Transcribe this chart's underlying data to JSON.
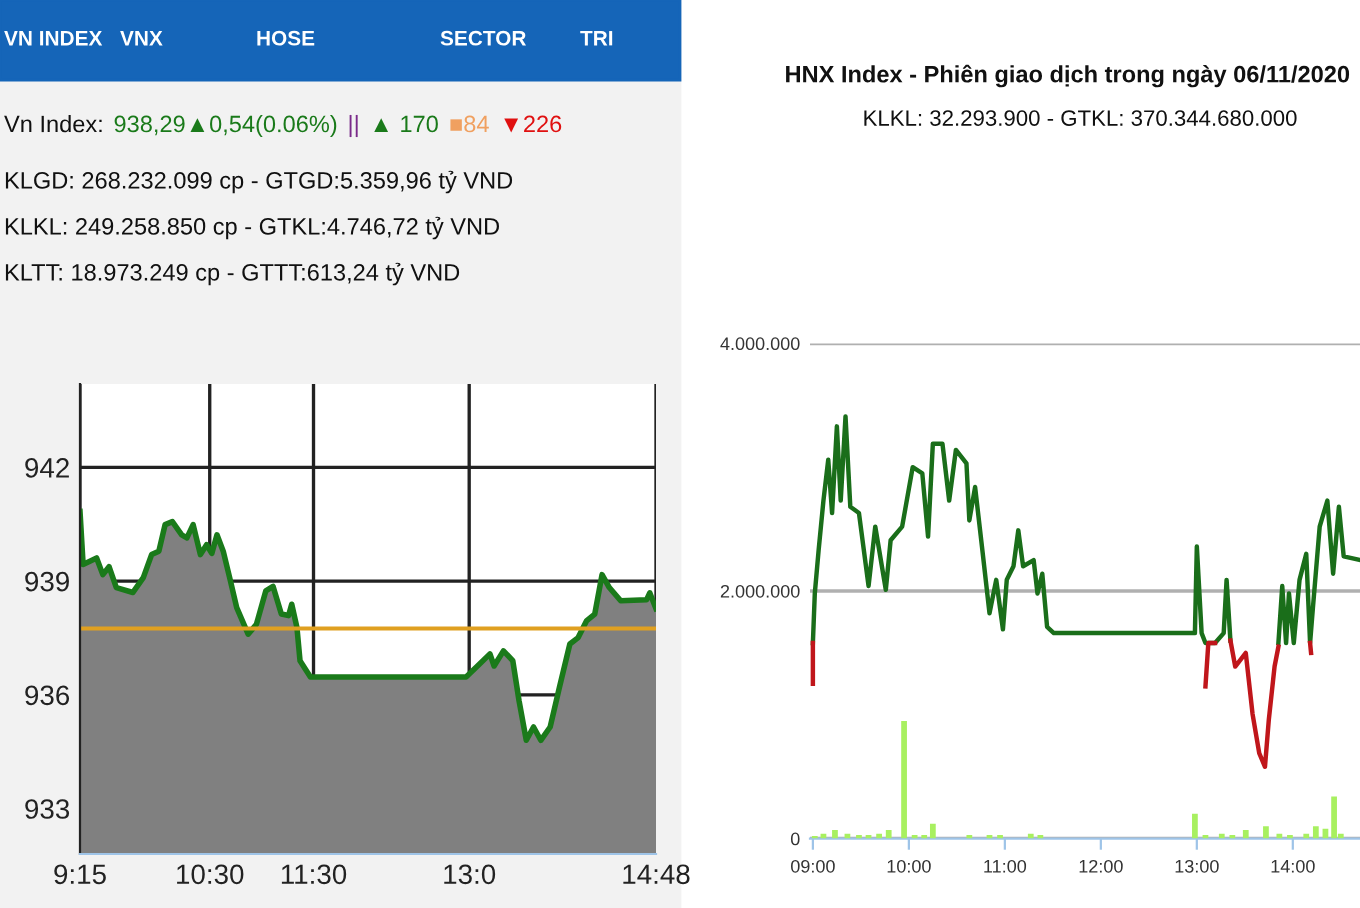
{
  "chart_data": [
    {
      "type": "area",
      "annotations": [
        "VN INDEX",
        "VNX",
        "HOSE",
        "SECTOR",
        "TRI",
        "Vn Index:",
        "938,29▲0,54(0.06%)",
        "||",
        "▲ 170",
        "■84",
        "▼226",
        "KLGD: 268.232.099 cp - GTGD:5.359,96 tỷ VND",
        "KLKL: 249.258.850 cp - GTKL:4.746,72 tỷ VND",
        "KLTT: 18.973.249 cp - GTTT:613,24 tỷ VND"
      ],
      "series": [
        {
          "color": "#1a7a1a",
          "x": [
            9.25,
            9.28,
            9.41,
            9.47,
            9.53,
            9.6,
            9.76,
            9.86,
            9.94,
            10.01,
            10.07,
            10.14,
            10.23,
            10.28,
            10.34,
            10.41,
            10.47,
            10.52,
            10.57,
            10.63,
            10.7,
            10.76,
            10.87,
            10.95,
            11.04,
            11.11,
            11.19,
            11.26,
            11.29,
            11.34,
            11.37,
            11.47,
            12.97,
            13.1,
            13.2,
            13.24,
            13.33,
            13.42,
            13.48,
            13.55,
            13.62,
            13.69,
            13.78,
            13.87,
            13.97,
            14.05,
            14.13,
            14.21,
            14.28,
            14.35,
            14.46,
            14.71,
            14.74,
            14.8
          ],
          "values": [
            940.84,
            939.44,
            939.61,
            939.17,
            939.38,
            938.83,
            938.7,
            939.09,
            939.7,
            939.79,
            940.49,
            940.57,
            940.22,
            940.14,
            940.49,
            939.7,
            939.96,
            939.73,
            940.22,
            939.79,
            939.0,
            938.3,
            937.6,
            937.86,
            938.74,
            938.86,
            938.13,
            938.09,
            938.39,
            937.78,
            936.9,
            936.47,
            936.47,
            936.81,
            937.08,
            936.76,
            937.16,
            936.9,
            935.85,
            934.8,
            935.15,
            934.8,
            935.15,
            936.2,
            937.34,
            937.51,
            937.95,
            938.13,
            939.17,
            938.83,
            938.48,
            938.51,
            938.69,
            938.27
          ]
        }
      ],
      "xlim": [
        9.25,
        14.8
      ],
      "xticks": [
        {
          "value": 9.25,
          "label": "9:15"
        },
        {
          "value": 10.5,
          "label": "10:30"
        },
        {
          "value": 11.5,
          "label": "11:30"
        },
        {
          "value": 13.0,
          "label": "13:0"
        },
        {
          "value": 14.8,
          "label": "14:48"
        }
      ],
      "ylim": [
        931.8,
        944.2
      ],
      "yticks": [
        933,
        936,
        939,
        942
      ],
      "grid": true,
      "ref_lines": [
        {
          "axis": "y",
          "value": 937.75,
          "color": "#e0a020"
        }
      ]
    },
    {
      "type": "line",
      "title": "HNX Index - Phiên giao dịch trong ngày 06/11/2020",
      "subtitle": "KLKL: 32.293.900 - GTKL: 370.344.680.000",
      "series": [
        {
          "type": "line",
          "color": "#1a6e1a",
          "x": [
            9.0,
            9.02,
            9.06,
            9.11,
            9.16,
            9.2,
            9.25,
            9.29,
            9.34,
            9.39,
            9.48,
            9.58,
            9.65,
            9.76,
            9.81,
            9.93,
            10.04,
            10.14,
            10.2,
            10.25,
            10.35,
            10.42,
            10.49,
            10.6,
            10.63,
            10.69,
            10.77,
            10.84,
            10.91,
            10.98,
            11.02,
            11.09,
            11.14,
            11.19,
            11.3,
            11.34,
            11.39,
            11.44,
            11.51,
            12.98,
            13.0,
            13.05,
            13.09,
            13.19,
            13.28,
            13.31,
            13.35,
            13.6,
            13.85,
            13.89,
            13.93,
            13.96,
            14.01,
            14.07,
            14.14,
            14.18,
            14.21,
            14.28,
            14.36,
            14.42,
            14.48,
            14.53,
            14.7
          ],
          "values": [
            1580000,
            1980000,
            2330000,
            2730000,
            3060000,
            2630000,
            3330000,
            2730000,
            3410000,
            2680000,
            2630000,
            2040000,
            2520000,
            2010000,
            2410000,
            2520000,
            3000000,
            2950000,
            2440000,
            3190000,
            3190000,
            2730000,
            3140000,
            3030000,
            2570000,
            2840000,
            2300000,
            1820000,
            2090000,
            1690000,
            2090000,
            2200000,
            2490000,
            2200000,
            2250000,
            1980000,
            2140000,
            1710000,
            1660000,
            1660000,
            2360000,
            1660000,
            1580000,
            1580000,
            1660000,
            2090000,
            1600000,
            null,
            1580000,
            2040000,
            1580000,
            1980000,
            1580000,
            2090000,
            2300000,
            1580000,
            1870000,
            2520000,
            2730000,
            2140000,
            2680000,
            2280000,
            2250000
          ]
        },
        {
          "type": "line",
          "color": "#c0161b",
          "x": [
            9.0,
            9.0,
            9.05,
            13.09,
            13.12,
            13.19,
            13.27,
            13.35,
            13.4,
            13.51,
            13.58,
            13.65,
            13.71,
            13.75,
            13.81,
            13.85,
            14.0,
            14.18,
            14.19
          ],
          "values": [
            1250000,
            1580000,
            null,
            1230000,
            1580000,
            1580000,
            null,
            1600000,
            1390000,
            1500000,
            1010000,
            690000,
            580000,
            960000,
            1390000,
            1550000,
            null,
            1580000,
            1500000
          ]
        },
        {
          "type": "bar",
          "color": "#a8f060",
          "x": [
            9.02,
            9.11,
            9.23,
            9.36,
            9.48,
            9.58,
            9.69,
            9.79,
            9.95,
            10.06,
            10.16,
            10.25,
            10.63,
            10.84,
            10.95,
            11.27,
            11.37,
            12.98,
            13.09,
            13.26,
            13.37,
            13.51,
            13.72,
            13.86,
            13.97,
            14.14,
            14.24,
            14.34,
            14.43,
            14.5
          ],
          "values": [
            20000,
            40000,
            70000,
            40000,
            30000,
            30000,
            40000,
            70000,
            950000,
            30000,
            30000,
            120000,
            30000,
            30000,
            30000,
            40000,
            30000,
            200000,
            30000,
            40000,
            30000,
            70000,
            100000,
            40000,
            30000,
            40000,
            100000,
            80000,
            340000,
            40000
          ]
        }
      ],
      "xlim": [
        8.97,
        14.7
      ],
      "xticks": [
        {
          "value": 9,
          "label": "09:00"
        },
        {
          "value": 10,
          "label": "10:00"
        },
        {
          "value": 11,
          "label": "11:00"
        },
        {
          "value": 12,
          "label": "12:00"
        },
        {
          "value": 13,
          "label": "13:00"
        },
        {
          "value": 14,
          "label": "14:00"
        }
      ],
      "ylim": [
        0,
        4000000
      ],
      "yticks": [
        {
          "value": 0,
          "label": "0"
        },
        {
          "value": 2000000,
          "label": "2.000.000"
        },
        {
          "value": 4000000,
          "label": "4.000.000"
        }
      ],
      "grid": "y"
    }
  ]
}
